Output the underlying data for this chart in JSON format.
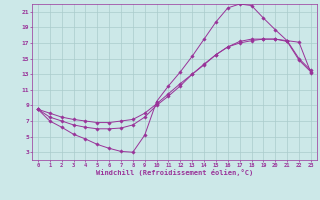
{
  "bg_color": "#cce8e8",
  "grid_color": "#aacccc",
  "line_color": "#993399",
  "xlim": [
    -0.5,
    23.5
  ],
  "ylim": [
    2,
    22
  ],
  "xticks": [
    0,
    1,
    2,
    3,
    4,
    5,
    6,
    7,
    8,
    9,
    10,
    11,
    12,
    13,
    14,
    15,
    16,
    17,
    18,
    19,
    20,
    21,
    22,
    23
  ],
  "yticks": [
    3,
    5,
    7,
    9,
    11,
    13,
    15,
    17,
    19,
    21
  ],
  "xlabel": "Windchill (Refroidissement éolien,°C)",
  "line1_x": [
    0,
    1,
    2,
    3,
    4,
    5,
    6,
    7,
    8,
    9,
    10,
    11,
    12,
    13,
    14,
    15,
    16,
    17,
    18,
    19,
    20,
    21,
    22,
    23
  ],
  "line1_y": [
    8.5,
    7.0,
    6.2,
    5.3,
    4.7,
    4.0,
    3.5,
    3.1,
    3.0,
    5.2,
    9.5,
    11.5,
    13.3,
    15.3,
    17.5,
    19.7,
    21.5,
    22.0,
    21.8,
    20.2,
    18.7,
    17.3,
    17.1,
    13.2
  ],
  "line2_x": [
    0,
    1,
    2,
    3,
    4,
    5,
    6,
    7,
    8,
    9,
    10,
    11,
    12,
    13,
    14,
    15,
    16,
    17,
    18,
    19,
    20,
    21,
    22,
    23
  ],
  "line2_y": [
    8.5,
    7.5,
    7.0,
    6.5,
    6.2,
    6.0,
    6.0,
    6.1,
    6.5,
    7.5,
    9.0,
    10.2,
    11.5,
    13.0,
    14.3,
    15.5,
    16.5,
    17.2,
    17.5,
    17.5,
    17.5,
    17.2,
    14.8,
    13.3
  ],
  "line3_x": [
    0,
    1,
    2,
    3,
    4,
    5,
    6,
    7,
    8,
    9,
    10,
    11,
    12,
    13,
    14,
    15,
    16,
    17,
    18,
    19,
    20,
    21,
    22,
    23
  ],
  "line3_y": [
    8.5,
    8.0,
    7.5,
    7.2,
    7.0,
    6.8,
    6.8,
    7.0,
    7.2,
    8.0,
    9.2,
    10.5,
    11.8,
    13.0,
    14.2,
    15.5,
    16.5,
    17.0,
    17.3,
    17.5,
    17.5,
    17.3,
    15.0,
    13.5
  ]
}
